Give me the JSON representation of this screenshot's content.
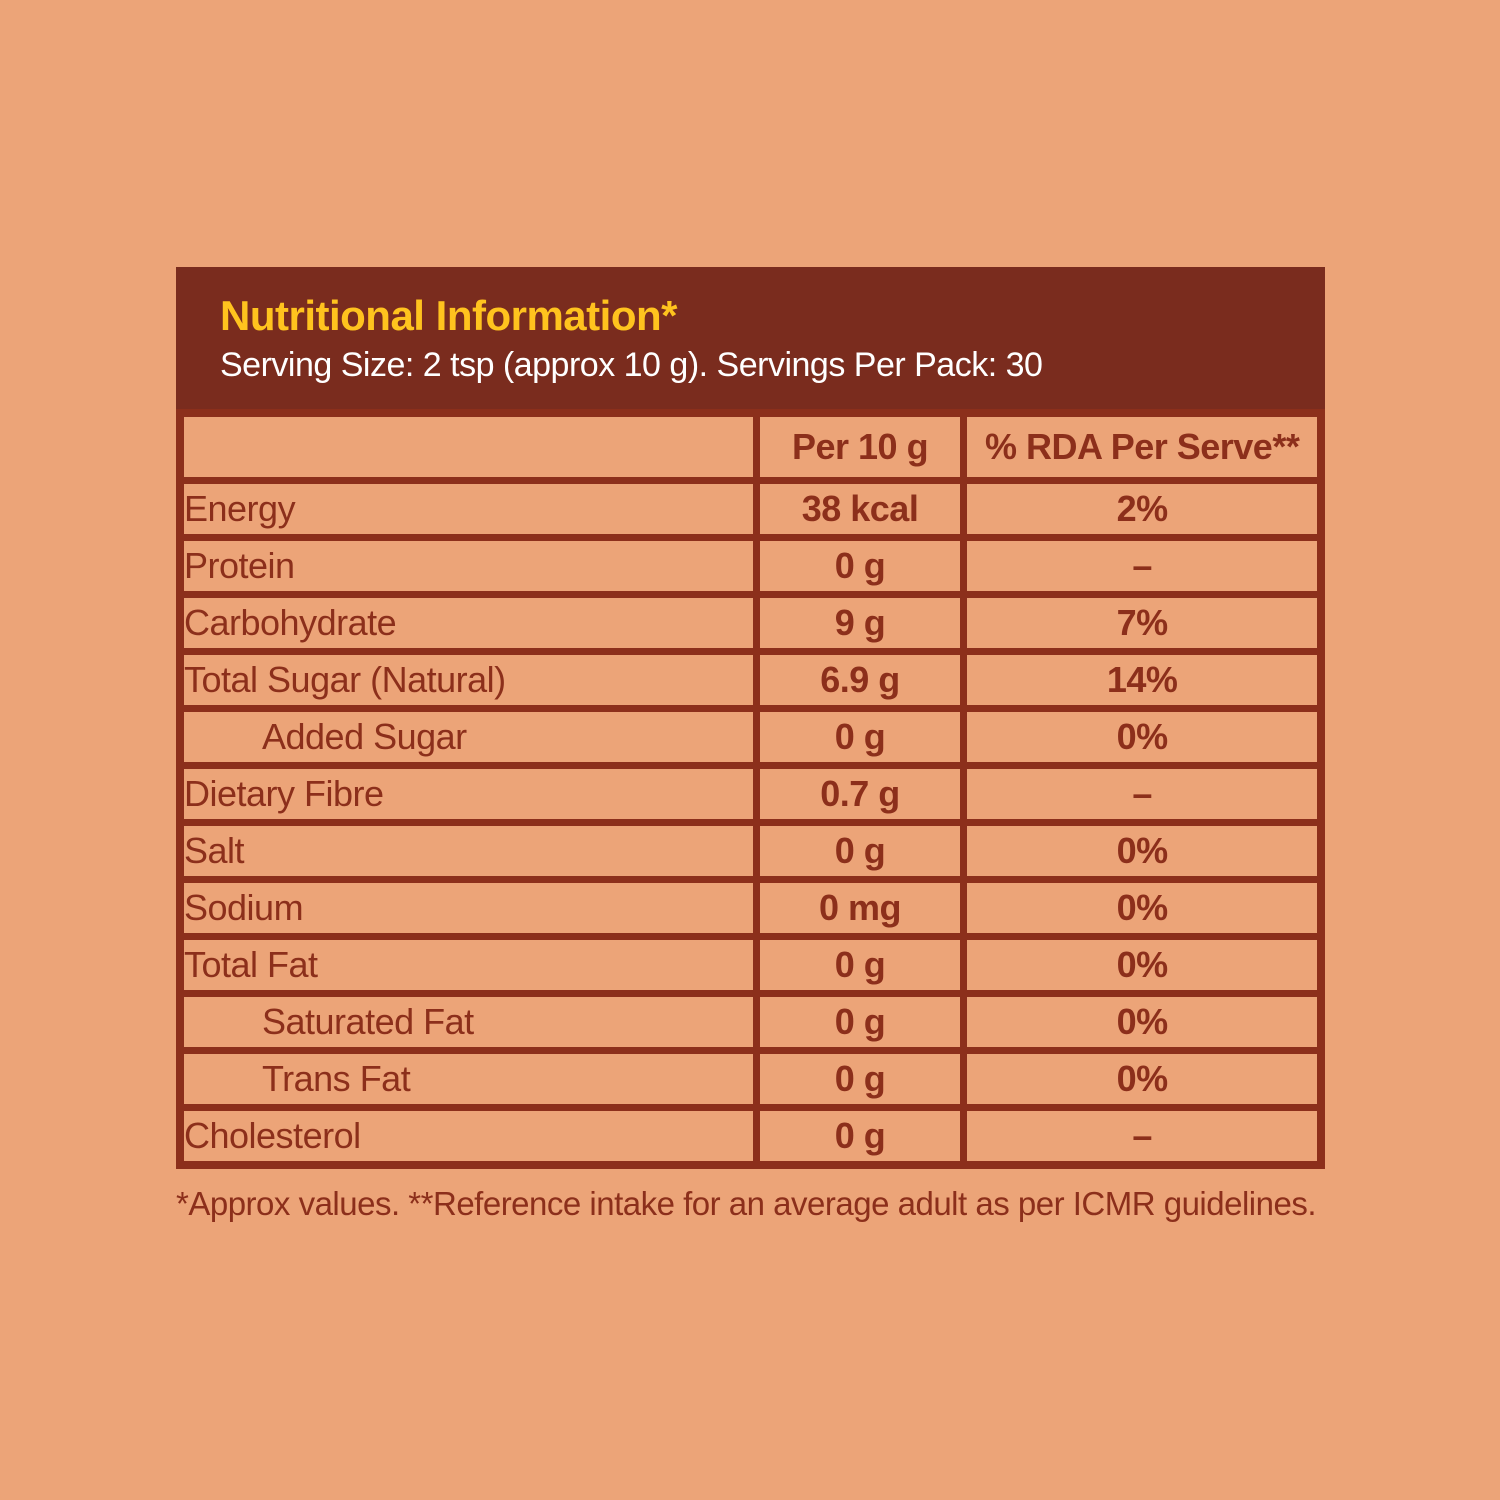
{
  "colors": {
    "background": "#ECA478",
    "header_bar": "#7A2C1E",
    "table_brown": "#8C2F1B",
    "title_yellow": "#FFC31E",
    "subtitle_white": "#FFFFFF"
  },
  "header": {
    "title": "Nutritional Information*",
    "subtitle": "Serving Size: 2 tsp (approx 10 g). Servings Per Pack: 30"
  },
  "table": {
    "columns": [
      "",
      "Per 10 g",
      "% RDA Per Serve**"
    ],
    "rows": [
      {
        "label": "Energy",
        "per10g": "38 kcal",
        "rda": "2%",
        "indent": false
      },
      {
        "label": "Protein",
        "per10g": "0 g",
        "rda": "–",
        "indent": false
      },
      {
        "label": "Carbohydrate",
        "per10g": "9 g",
        "rda": "7%",
        "indent": false
      },
      {
        "label": "Total Sugar (Natural)",
        "per10g": "6.9 g",
        "rda": "14%",
        "indent": false
      },
      {
        "label": "Added Sugar",
        "per10g": "0 g",
        "rda": "0%",
        "indent": true
      },
      {
        "label": "Dietary Fibre",
        "per10g": "0.7 g",
        "rda": "–",
        "indent": false
      },
      {
        "label": "Salt",
        "per10g": "0 g",
        "rda": "0%",
        "indent": false
      },
      {
        "label": "Sodium",
        "per10g": "0 mg",
        "rda": "0%",
        "indent": false
      },
      {
        "label": "Total Fat",
        "per10g": "0 g",
        "rda": "0%",
        "indent": false
      },
      {
        "label": "Saturated Fat",
        "per10g": "0 g",
        "rda": "0%",
        "indent": true
      },
      {
        "label": "Trans Fat",
        "per10g": "0 g",
        "rda": "0%",
        "indent": true
      },
      {
        "label": "Cholesterol",
        "per10g": "0 g",
        "rda": "–",
        "indent": false
      }
    ]
  },
  "footnote": "*Approx values. **Reference intake for an average adult as per ICMR guidelines."
}
